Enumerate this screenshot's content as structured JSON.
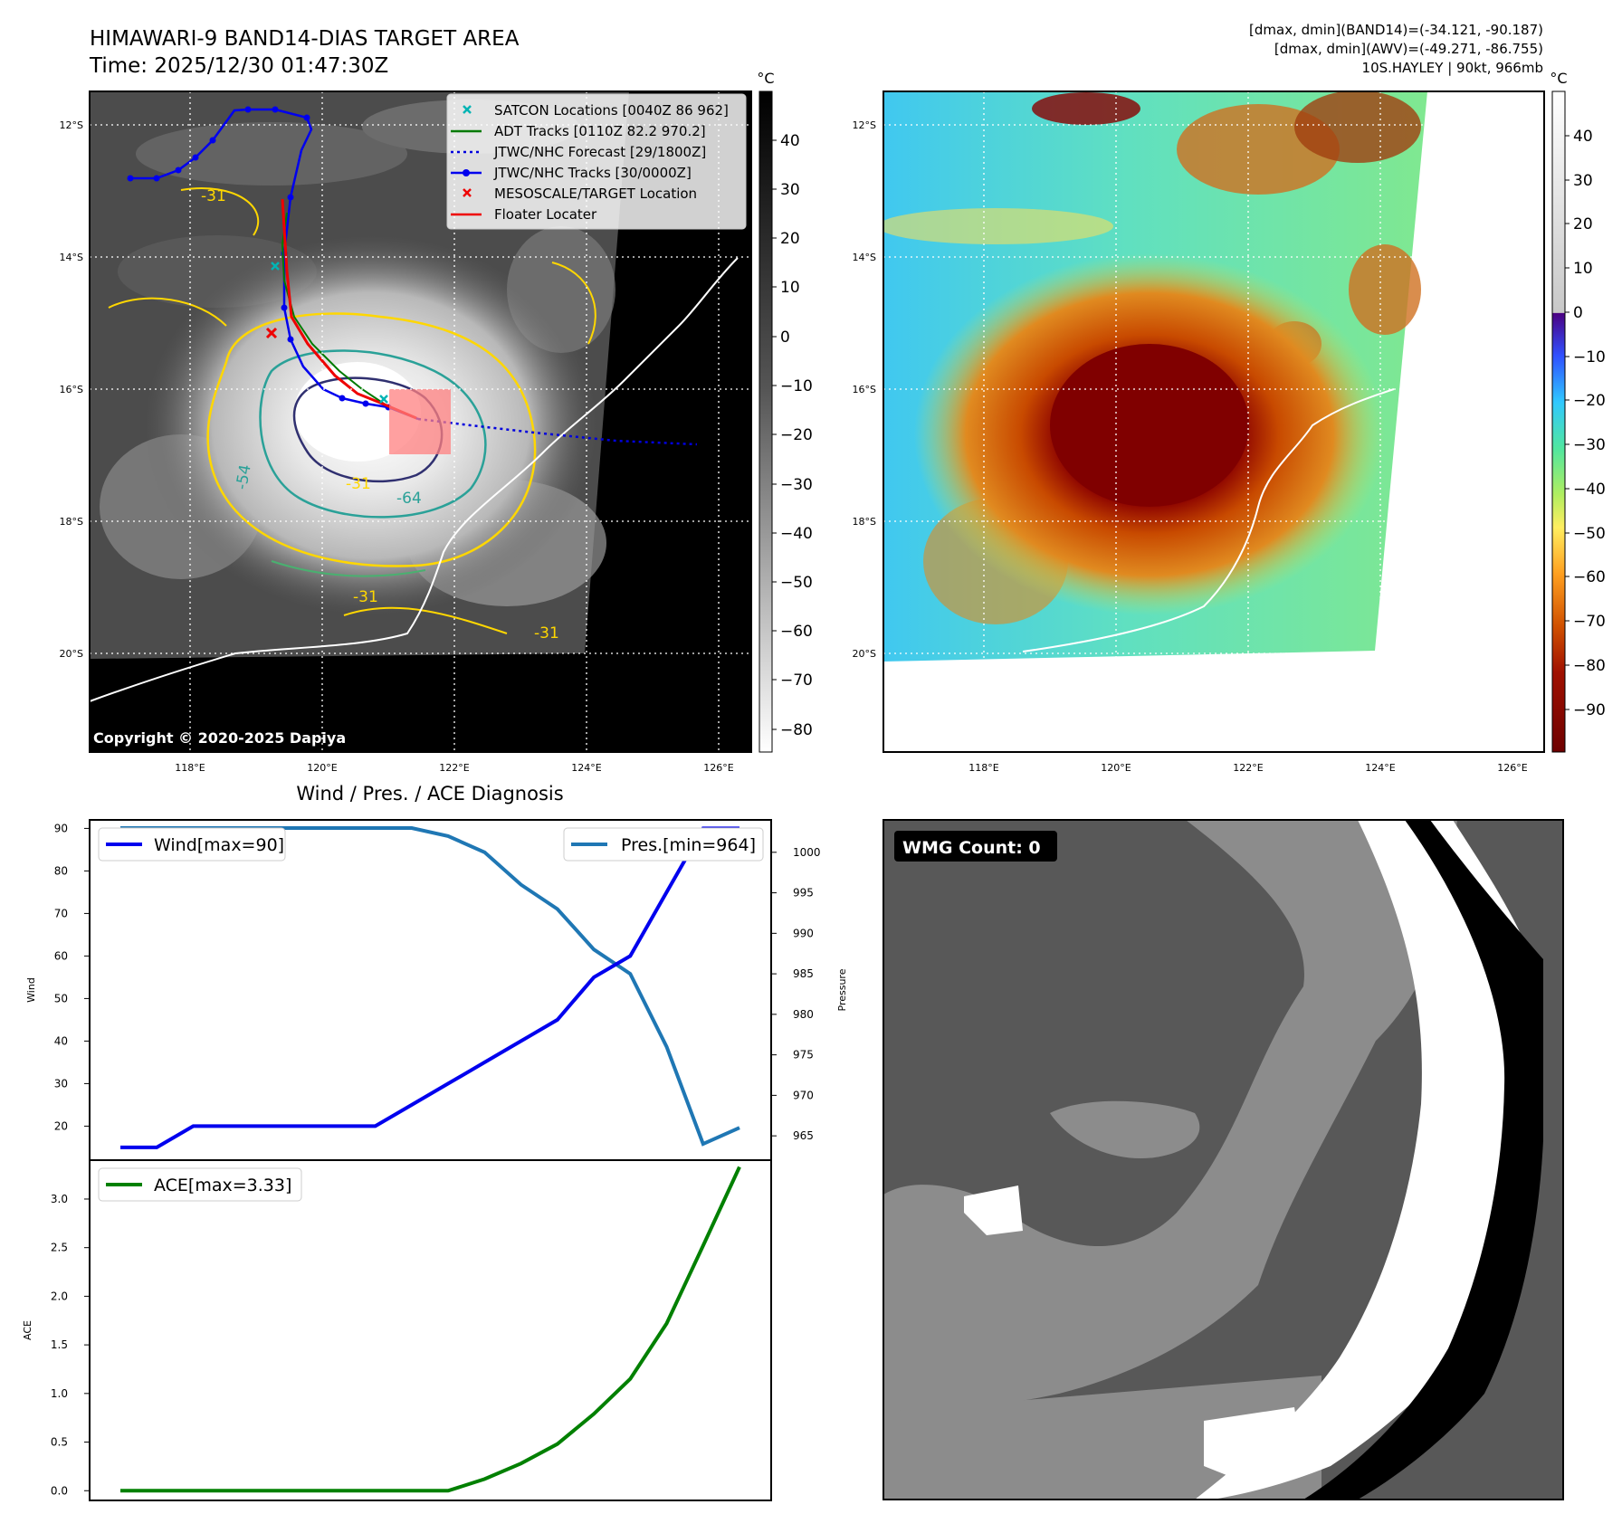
{
  "header": {
    "title_line1": "HIMAWARI-9 BAND14-DIAS TARGET AREA",
    "title_line2": "Time: 2025/12/30 01:47:30Z",
    "info_line1": "[dmax, dmin](BAND14)=(-34.121, -90.187)",
    "info_line2": "[dmax, dmin](AWV)=(-49.271, -86.755)",
    "info_line3": "10S.HAYLEY | 90kt, 966mb"
  },
  "map_left": {
    "lat_ticks": [
      "12°S",
      "14°S",
      "16°S",
      "18°S",
      "20°S"
    ],
    "lon_ticks": [
      "118°E",
      "120°E",
      "122°E",
      "124°E",
      "126°E"
    ],
    "legend": [
      {
        "label": "SATCON Locations [0040Z 86 962]",
        "color": "#00b4b4",
        "marker": "x"
      },
      {
        "label": "ADT Tracks [0110Z 82.2 970.2]",
        "color": "#007a00",
        "marker": "line"
      },
      {
        "label": "JTWC/NHC Forecast [29/1800Z]",
        "color": "#0000dd",
        "marker": "dotted"
      },
      {
        "label": "JTWC/NHC Tracks [30/0000Z]",
        "color": "#0000ee",
        "marker": "line-dot"
      },
      {
        "label": "MESOSCALE/TARGET Location",
        "color": "#ee0000",
        "marker": "x"
      },
      {
        "label": "Floater Locater",
        "color": "#ee0000",
        "marker": "line"
      }
    ],
    "contour_labels": [
      "-31",
      "-31",
      "-31",
      "-54",
      "-64",
      "-31"
    ],
    "copyright": "Copyright © 2020-2025 Dapiya",
    "colorbar_unit": "°C",
    "colorbar_ticks": [
      "40",
      "30",
      "20",
      "10",
      "0",
      "−10",
      "−20",
      "−30",
      "−40",
      "−50",
      "−60",
      "−70",
      "−80"
    ]
  },
  "map_right": {
    "lat_ticks": [
      "12°S",
      "14°S",
      "16°S",
      "18°S",
      "20°S"
    ],
    "lon_ticks": [
      "118°E",
      "120°E",
      "122°E",
      "124°E",
      "126°E"
    ],
    "colorbar_unit": "°C",
    "colorbar_ticks": [
      "40",
      "30",
      "20",
      "10",
      "0",
      "−10",
      "−20",
      "−30",
      "−40",
      "−50",
      "−60",
      "−70",
      "−80",
      "−90"
    ]
  },
  "diagnosis": {
    "title": "Wind / Pres. / ACE Diagnosis",
    "wind_ylabel": "Wind",
    "pres_ylabel": "Pressure",
    "ace_ylabel": "ACE",
    "wind_legend": "Wind[max=90]",
    "pres_legend": "Pres.[min=964]",
    "ace_legend": "ACE[max=3.33]"
  },
  "wmg": {
    "label": "WMG Count: 0"
  },
  "colors": {
    "wind": "#0000ee",
    "pressure": "#1f77b4",
    "ace": "#008000",
    "track_red": "#ee0000"
  },
  "chart_data": [
    {
      "type": "line",
      "title": "Wind / Pres. / ACE Diagnosis",
      "ylabel": "Wind",
      "ylim": [
        12,
        92
      ],
      "yticks": [
        20,
        30,
        40,
        50,
        60,
        70,
        80,
        90
      ],
      "series": [
        {
          "name": "Wind[max=90]",
          "values": [
            15,
            15,
            20,
            20,
            20,
            20,
            20,
            20,
            25,
            30,
            35,
            40,
            45,
            55,
            60,
            75,
            90,
            90
          ]
        }
      ]
    },
    {
      "type": "line",
      "ylabel": "Pressure",
      "ylim": [
        962,
        1004
      ],
      "yticks": [
        965,
        970,
        975,
        980,
        985,
        990,
        995,
        1000
      ],
      "series": [
        {
          "name": "Pres.[min=964]",
          "values": [
            1003,
            1003,
            1003,
            1003,
            1003,
            1003,
            1003,
            1003,
            1003,
            1002,
            1000,
            996,
            993,
            988,
            985,
            976,
            964,
            966
          ]
        }
      ]
    },
    {
      "type": "line",
      "ylabel": "ACE",
      "ylim": [
        -0.1,
        3.4
      ],
      "yticks": [
        0.0,
        0.5,
        1.0,
        1.5,
        2.0,
        2.5,
        3.0
      ],
      "series": [
        {
          "name": "ACE[max=3.33]",
          "values": [
            0,
            0,
            0,
            0,
            0,
            0,
            0,
            0,
            0,
            0,
            0.12,
            0.28,
            0.48,
            0.79,
            1.15,
            1.72,
            2.52,
            3.33
          ]
        }
      ]
    }
  ]
}
